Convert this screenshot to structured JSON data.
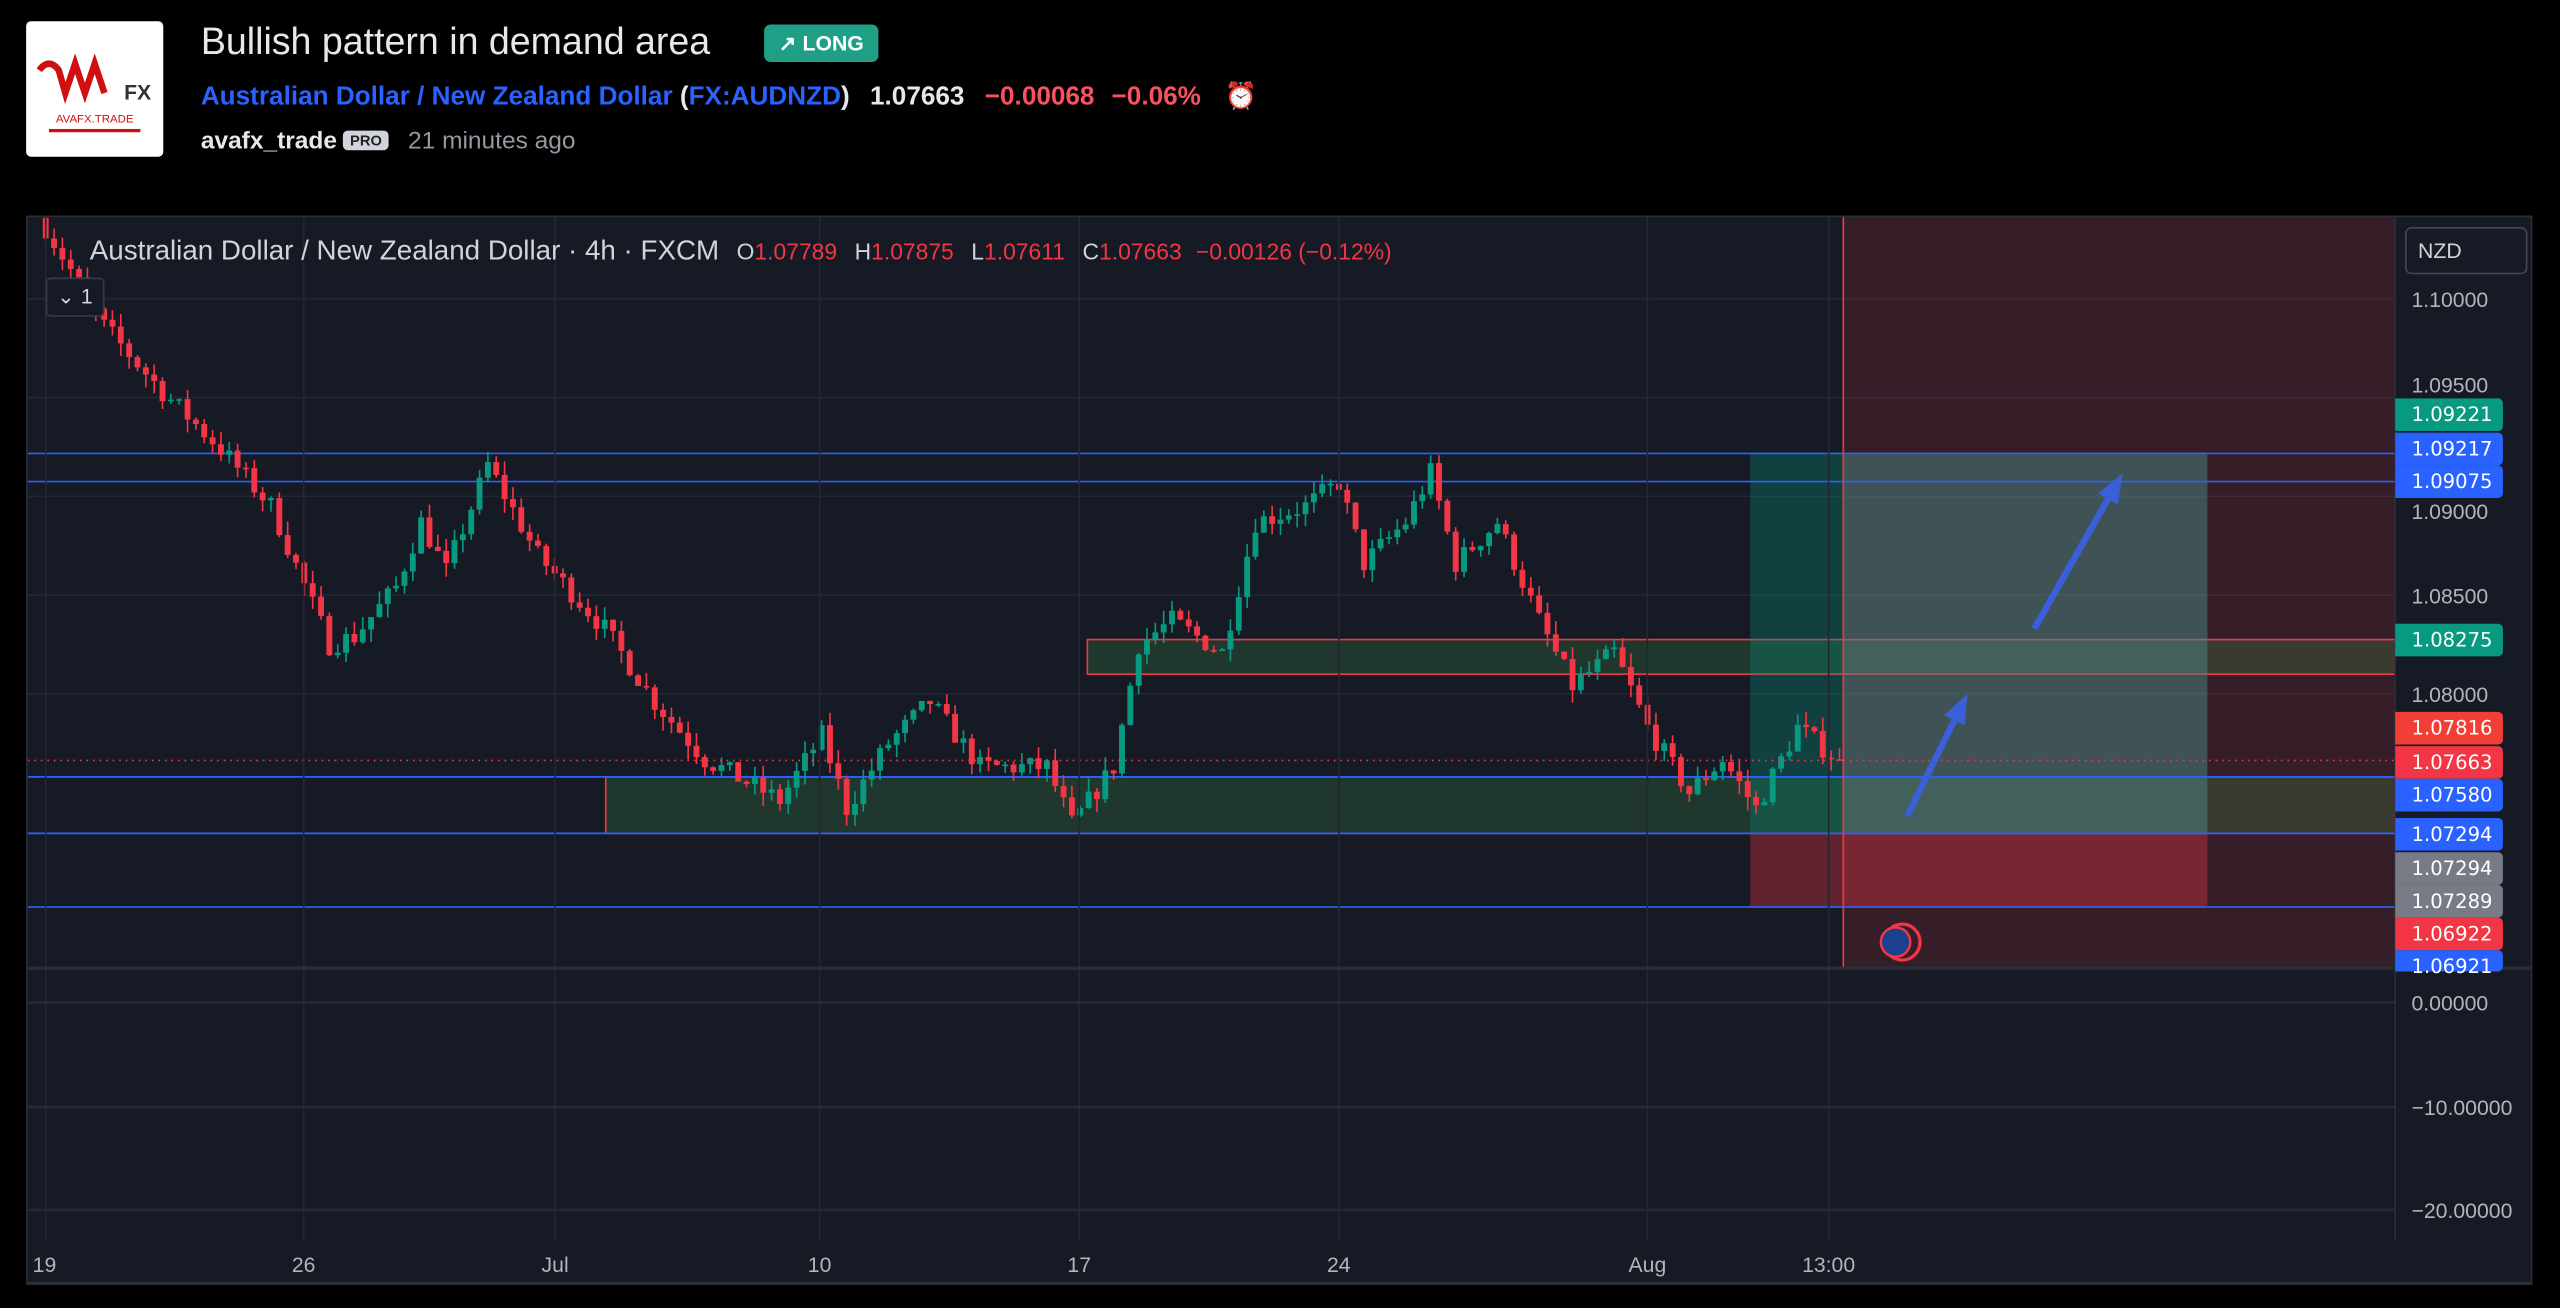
{
  "header": {
    "title": "Bullish pattern in demand area",
    "badge": "↗ LONG",
    "symbol_name": "Australian Dollar / New Zealand Dollar",
    "symbol_code": "FX:AUDNZD",
    "price": "1.07663",
    "change": "−0.00068",
    "change_pct": "−0.06%",
    "author": "avafx_trade",
    "author_badge": "PRO",
    "time_ago": "21 minutes ago",
    "logo_text": "AVAFX.TRADE"
  },
  "legend": {
    "title": "Australian Dollar / New Zealand Dollar · 4h · FXCM",
    "o_label": "O",
    "o": "1.07789",
    "h_label": "H",
    "h": "1.07875",
    "l_label": "L",
    "l": "1.07611",
    "c_label": "C",
    "c": "1.07663",
    "chg": "−0.00126 (−0.12%)",
    "collapse": "⌄ 1"
  },
  "currency": "NZD",
  "price_scale": [
    "1.10000",
    "1.09500",
    "1.09000",
    "1.08500",
    "1.08000"
  ],
  "price_scale_values": [
    1.1,
    1.095,
    1.09,
    1.085,
    1.08
  ],
  "tags": [
    {
      "text": "1.09221",
      "color": "#089981"
    },
    {
      "text": "1.09217",
      "color": "#2962ff"
    },
    {
      "text": "1.09075",
      "color": "#2962ff"
    },
    {
      "text": "1.08275",
      "color": "#089981"
    },
    {
      "text": "1.07816",
      "color": "#f23f36"
    },
    {
      "text": "1.07663",
      "color": "#f23645"
    },
    {
      "text": "1.07580",
      "color": "#2962ff"
    },
    {
      "text": "1.07294",
      "color": "#2962ff"
    },
    {
      "text": "1.07294",
      "color": "#787b86"
    },
    {
      "text": "1.07289",
      "color": "#787b86"
    },
    {
      "text": "1.06922",
      "color": "#f23645"
    },
    {
      "text": "1.06921",
      "color": "#2962ff"
    }
  ],
  "lower_scale": [
    "0.00000",
    "−10.00000",
    "−20.00000"
  ],
  "time_axis": [
    "19",
    "26",
    "Jul",
    "10",
    "17",
    "24",
    "Aug",
    "13:00"
  ],
  "levels": [
    1.09217,
    1.09075,
    1.0758,
    1.07294,
    1.06921
  ],
  "current_price": 1.07663,
  "supply_zone": [
    1.08275,
    1.081
  ],
  "demand_zone": [
    1.0758,
    1.07294
  ],
  "position": {
    "target": 1.09221,
    "entry": 1.07294,
    "stop": 1.06922
  },
  "price_path": [
    [
      0,
      1.1036
    ],
    [
      7,
      1.0986
    ],
    [
      14,
      1.0953
    ],
    [
      21,
      1.0924
    ],
    [
      27,
      1.0895
    ],
    [
      34,
      1.0825
    ],
    [
      37,
      1.0829
    ],
    [
      42,
      1.0854
    ],
    [
      45,
      1.0887
    ],
    [
      48,
      1.0862
    ],
    [
      53,
      1.0916
    ],
    [
      59,
      1.087
    ],
    [
      67,
      1.0833
    ],
    [
      73,
      1.0796
    ],
    [
      79,
      1.0767
    ],
    [
      88,
      1.0746
    ],
    [
      93,
      1.0779
    ],
    [
      96,
      1.0742
    ],
    [
      101,
      1.0775
    ],
    [
      106,
      1.0796
    ],
    [
      112,
      1.0763
    ],
    [
      120,
      1.0763
    ],
    [
      123,
      1.0734
    ],
    [
      128,
      1.0763
    ],
    [
      131,
      1.0825
    ],
    [
      135,
      1.0837
    ],
    [
      141,
      1.0821
    ],
    [
      145,
      1.0887
    ],
    [
      151,
      1.0895
    ],
    [
      155,
      1.0907
    ],
    [
      158,
      1.0866
    ],
    [
      163,
      1.0887
    ],
    [
      166,
      1.0912
    ],
    [
      169,
      1.0866
    ],
    [
      174,
      1.0887
    ],
    [
      179,
      1.0837
    ],
    [
      183,
      1.0804
    ],
    [
      188,
      1.0821
    ],
    [
      192,
      1.0783
    ],
    [
      197,
      1.075
    ],
    [
      201,
      1.0767
    ],
    [
      205,
      1.0742
    ],
    [
      210,
      1.0783
    ],
    [
      215,
      1.0766
    ]
  ],
  "colors": {
    "up": "#089981",
    "down": "#f23645",
    "line": "#2962ff",
    "bg": "#161a25"
  }
}
